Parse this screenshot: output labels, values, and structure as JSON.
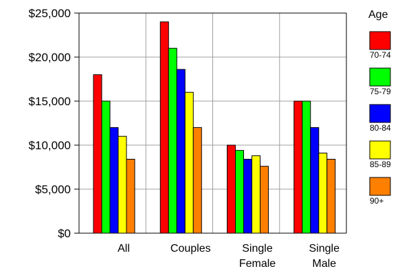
{
  "chart_data": {
    "type": "bar",
    "categories": [
      {
        "lines": [
          "All"
        ]
      },
      {
        "lines": [
          "Couples"
        ]
      },
      {
        "lines": [
          "Single",
          "Female"
        ]
      },
      {
        "lines": [
          "Single",
          "Male"
        ]
      }
    ],
    "series": [
      {
        "name": "70-74",
        "color": "#ff0000",
        "values": [
          18000,
          24000,
          10000,
          15000
        ]
      },
      {
        "name": "75-79",
        "color": "#00ff00",
        "values": [
          15000,
          21000,
          9400,
          15000
        ]
      },
      {
        "name": "80-84",
        "color": "#0000ff",
        "values": [
          12000,
          18600,
          8400,
          12000
        ]
      },
      {
        "name": "85-89",
        "color": "#ffff00",
        "values": [
          11000,
          16000,
          8800,
          9100
        ]
      },
      {
        "name": "90+",
        "color": "#ff8000",
        "values": [
          8400,
          12000,
          7600,
          8400
        ]
      }
    ],
    "y_ticks": [
      "$0",
      "$5,000",
      "$10,000",
      "$15,000",
      "$20,000",
      "$25,000"
    ],
    "ylim": [
      0,
      25000
    ],
    "legend_title": "Age",
    "legend_position": "right",
    "grid": true
  }
}
